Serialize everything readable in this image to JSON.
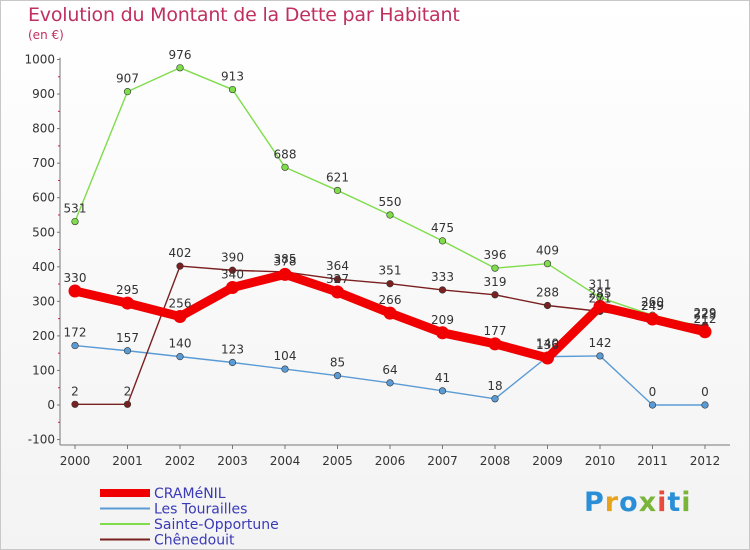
{
  "title": "Evolution du Montant de la Dette par Habitant",
  "subtitle": "(en €)",
  "brand": {
    "text": "Proxiti",
    "letter_colors": [
      "#2a8fd6",
      "#e8a21c",
      "#2a8fd6",
      "#7ab53a",
      "#e84b3c",
      "#2a8fd6",
      "#7ab53a"
    ]
  },
  "chart_data": {
    "type": "line",
    "title": "Evolution du Montant de la Dette par Habitant",
    "ylabel": "(en €)",
    "xlabel": "",
    "x": [
      "2000",
      "2001",
      "2002",
      "2003",
      "2004",
      "2005",
      "2006",
      "2007",
      "2008",
      "2009",
      "2010",
      "2011",
      "2012"
    ],
    "ylim": [
      -100,
      1000
    ],
    "yticks": [
      -100,
      0,
      100,
      200,
      300,
      400,
      500,
      600,
      700,
      800,
      900,
      1000
    ],
    "grid": false,
    "legend": "bottom-left",
    "series": [
      {
        "name": "CRAMéNIL",
        "color": "#f00000",
        "bold": true,
        "values": [
          330,
          295,
          256,
          340,
          378,
          327,
          266,
          209,
          177,
          136,
          285,
          249,
          212
        ]
      },
      {
        "name": "Les Tourailles",
        "color": "#5b9bd5",
        "bold": false,
        "values": [
          172,
          157,
          140,
          123,
          104,
          85,
          64,
          41,
          18,
          140,
          142,
          0,
          0
        ]
      },
      {
        "name": "Sainte-Opportune",
        "color": "#7fdc4a",
        "bold": false,
        "values": [
          531,
          907,
          976,
          913,
          688,
          621,
          550,
          475,
          396,
          409,
          311,
          260,
          225
        ]
      },
      {
        "name": "Chênedouit",
        "color": "#7a2020",
        "bold": false,
        "values": [
          2,
          2,
          402,
          390,
          385,
          364,
          351,
          333,
          319,
          288,
          271,
          249,
          229
        ]
      }
    ]
  }
}
